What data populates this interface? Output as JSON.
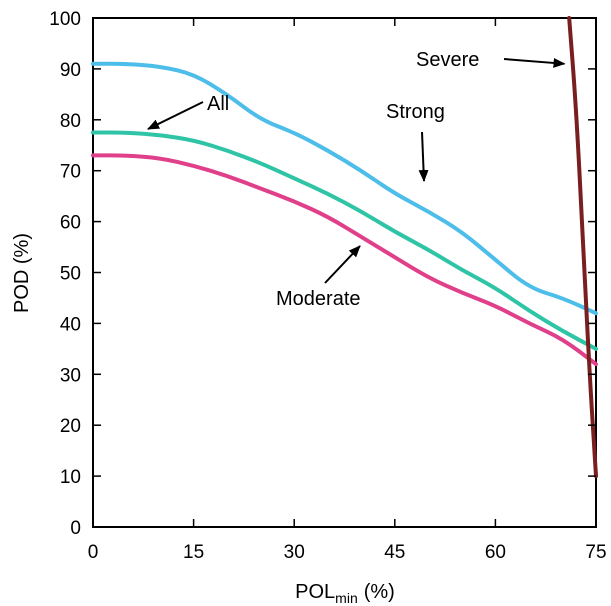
{
  "chart_data": {
    "type": "line",
    "xlabel": "POL",
    "xlabel_sub": "min",
    "xlabel_unit": "(%)",
    "ylabel": "POD (%)",
    "xlim": [
      0,
      75
    ],
    "ylim": [
      0,
      100
    ],
    "x_ticks": [
      "0",
      "15",
      "30",
      "45",
      "60",
      "75"
    ],
    "y_ticks": [
      "0",
      "10",
      "20",
      "30",
      "40",
      "50",
      "60",
      "70",
      "80",
      "90",
      "100"
    ],
    "grid": false,
    "series": [
      {
        "name": "Strong",
        "color": "#4dbde9",
        "x": [
          0,
          5,
          10,
          15,
          20,
          25,
          30,
          35,
          40,
          45,
          50,
          55,
          60,
          65,
          70,
          75
        ],
        "y": [
          91,
          91,
          90.5,
          89,
          85,
          80,
          77.5,
          74,
          70,
          65.5,
          62,
          58,
          52.5,
          47,
          45,
          42
        ]
      },
      {
        "name": "All",
        "color": "#2ec4a5",
        "x": [
          0,
          5,
          10,
          15,
          20,
          25,
          30,
          35,
          40,
          45,
          50,
          55,
          60,
          65,
          70,
          75
        ],
        "y": [
          77.5,
          77.5,
          77,
          76,
          74,
          71.5,
          68.5,
          65.5,
          62,
          58,
          54.5,
          50.5,
          47,
          42.5,
          38.5,
          35
        ]
      },
      {
        "name": "Moderate",
        "color": "#e0408a",
        "x": [
          0,
          5,
          10,
          15,
          20,
          25,
          30,
          35,
          40,
          45,
          50,
          55,
          60,
          65,
          70,
          75
        ],
        "y": [
          73,
          73,
          72.5,
          71,
          69,
          66.5,
          64,
          61,
          57,
          53,
          49,
          46,
          43.5,
          40,
          37,
          32
        ]
      },
      {
        "name": "Severe",
        "color": "#7a1f1f",
        "x": [
          71,
          72,
          73,
          74,
          75
        ],
        "y": [
          100,
          83,
          58,
          31,
          10
        ]
      }
    ],
    "annotations": [
      {
        "text": "Severe",
        "target_series": "Severe",
        "target_x": 70.5,
        "target_y": 91
      },
      {
        "text": "Strong",
        "target_series": "Strong",
        "target_x": 50,
        "target_y": 66
      },
      {
        "text": "All",
        "target_series": "All",
        "target_x": 8,
        "target_y": 77.5
      },
      {
        "text": "Moderate",
        "target_series": "Moderate",
        "target_x": 39,
        "target_y": 57
      }
    ]
  }
}
